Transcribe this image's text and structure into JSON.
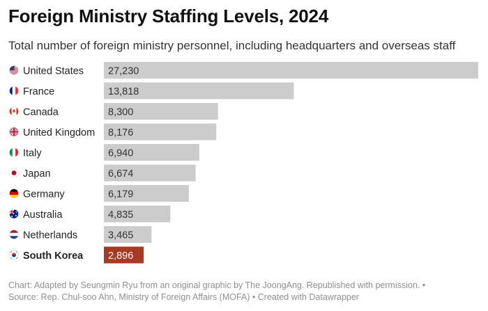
{
  "title": "Foreign Ministry Staffing Levels, 2024",
  "subtitle": "Total number of foreign ministry personnel, including headquarters and overseas staff",
  "footer": {
    "line1": "Chart: Adapted by Seungmin Ryu from an original graphic by The JoongAng. Republished with permission. •",
    "line2": "Source: Rep. Chul-soo Ahn, Ministry of Foreign Affairs (MOFA) • Created with Datawrapper"
  },
  "colors": {
    "bar": "#cccccc",
    "highlight": "#a63a24",
    "label": "#222222",
    "value": "#333333",
    "highlight_value": "#ffffff"
  },
  "chart_data": {
    "type": "bar",
    "orientation": "horizontal",
    "title": "Foreign Ministry Staffing Levels, 2024",
    "xlabel": "",
    "ylabel": "",
    "xlim": [
      0,
      27230
    ],
    "categories": [
      "United States",
      "France",
      "Canada",
      "United Kingdom",
      "Italy",
      "Japan",
      "Germany",
      "Australia",
      "Netherlands",
      "South Korea"
    ],
    "values": [
      27230,
      13818,
      8300,
      8176,
      6940,
      6674,
      6179,
      4835,
      3465,
      2896
    ],
    "value_labels": [
      "27,230",
      "13,818",
      "8,300",
      "8,176",
      "6,940",
      "6,674",
      "6,179",
      "4,835",
      "3,465",
      "2,896"
    ],
    "flags": [
      "us-flag-icon",
      "france-flag-icon",
      "canada-flag-icon",
      "uk-flag-icon",
      "italy-flag-icon",
      "japan-flag-icon",
      "germany-flag-icon",
      "australia-flag-icon",
      "netherlands-flag-icon",
      "south-korea-flag-icon"
    ],
    "highlight": "South Korea"
  }
}
